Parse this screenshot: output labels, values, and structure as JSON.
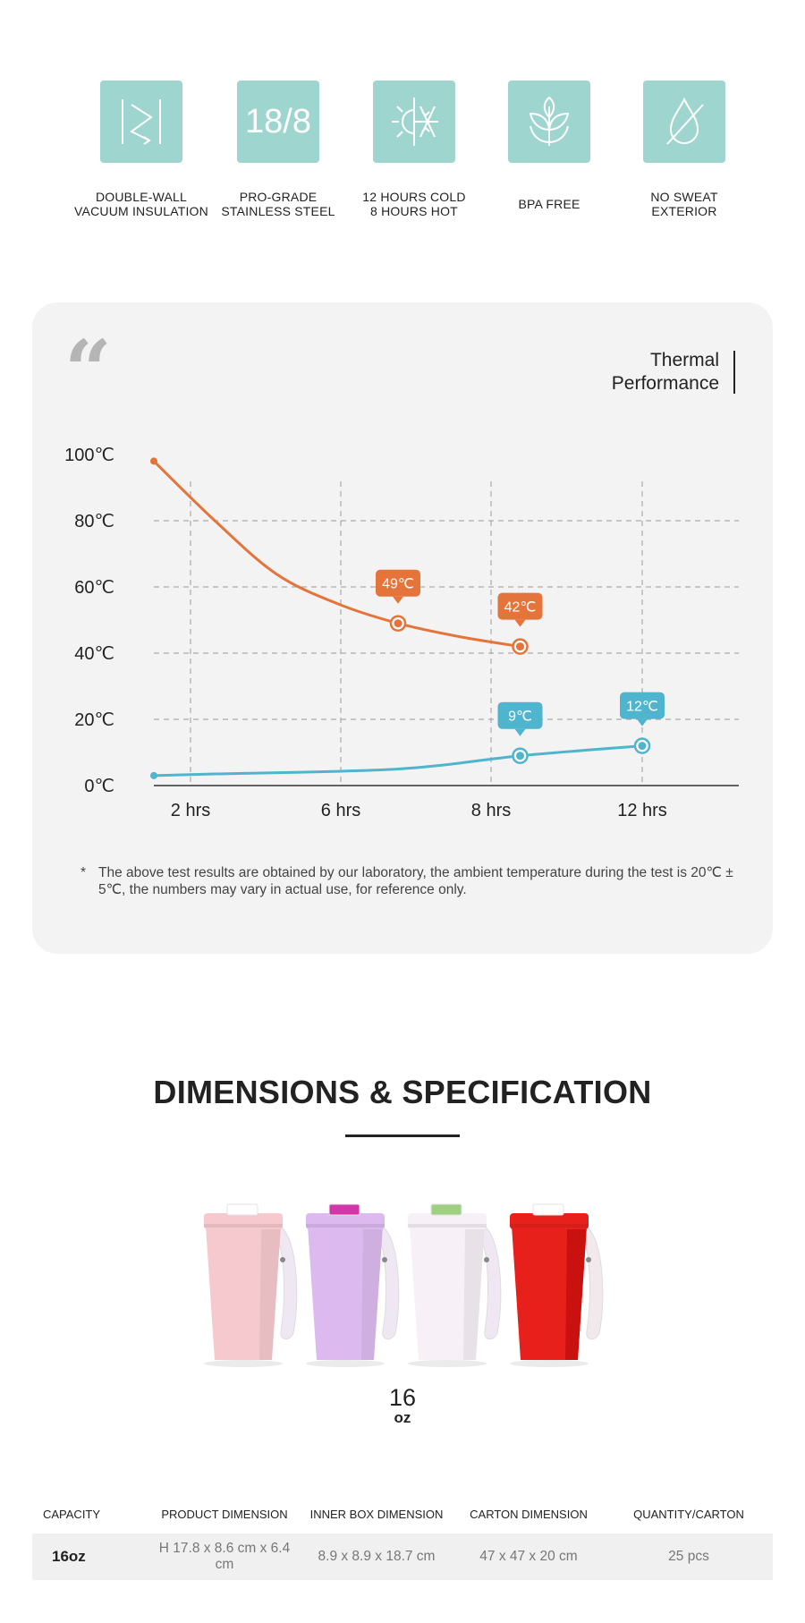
{
  "features": [
    {
      "icon": "vacuum-insulation-icon",
      "lines": [
        "DOUBLE-WALL",
        "VACUUM INSULATION"
      ]
    },
    {
      "icon": "steel-18-8-icon",
      "icon_text": "18/8",
      "lines": [
        "PRO-GRADE",
        "STAINLESS STEEL"
      ]
    },
    {
      "icon": "sun-snowflake-icon",
      "lines": [
        "12 HOURS COLD",
        "8 HOURS HOT"
      ]
    },
    {
      "icon": "leaf-icon",
      "lines": [
        "BPA FREE"
      ]
    },
    {
      "icon": "no-drop-icon",
      "lines": [
        "NO SWEAT",
        "EXTERIOR"
      ]
    }
  ],
  "colors": {
    "feature_bg": "#9fd5cf",
    "hot": "#e5743a",
    "cold": "#4fb4cd",
    "card_bg": "#f4f3f3"
  },
  "thermal": {
    "quote": "“",
    "title_lines": [
      "Thermal",
      "Performance"
    ],
    "footnote_star": "*",
    "footnote": "The above test results are obtained by our laboratory, the ambient temperature during the test is 20℃ ± 5℃, the numbers may vary in actual use, for reference only."
  },
  "chart_data": {
    "type": "line",
    "x_categories": [
      "2 hrs",
      "6 hrs",
      "8 hrs",
      "12 hrs"
    ],
    "y_ticks": [
      "0℃",
      "20℃",
      "40℃",
      "60℃",
      "80℃",
      "100℃"
    ],
    "ylim": [
      0,
      100
    ],
    "grid": true,
    "series": [
      {
        "color": "#e5743a",
        "points": [
          {
            "x": 0,
            "y": 98
          },
          {
            "x": 1,
            "y": 80
          },
          {
            "x": 2,
            "y": 64
          },
          {
            "x": 3,
            "y": 55
          },
          {
            "x": 4,
            "y": 49,
            "label": "49℃"
          },
          {
            "x": 5,
            "y": 45
          },
          {
            "x": 6,
            "y": 42,
            "label": "42℃"
          }
        ]
      },
      {
        "color": "#4fb4cd",
        "points": [
          {
            "x": 0,
            "y": 3
          },
          {
            "x": 1,
            "y": 3.5
          },
          {
            "x": 4,
            "y": 5
          },
          {
            "x": 6,
            "y": 9,
            "label": "9℃"
          },
          {
            "x": 8,
            "y": 12,
            "label": "12℃"
          }
        ]
      }
    ]
  },
  "dimensions": {
    "title": "DIMENSIONS & SPECIFICATION",
    "capacity_number": "16",
    "capacity_unit": "oz",
    "cup_colors": [
      "#f6c9cf",
      "#dcb9ef",
      "#f7f1f7",
      "#e8201c"
    ],
    "lid_accents": [
      "#ffffff",
      "#d236a7",
      "#9fd080",
      "#ffffff"
    ]
  },
  "spec_table": {
    "headers": [
      "CAPACITY",
      "PRODUCT DIMENSION",
      "INNER BOX DIMENSION",
      "CARTON DIMENSION",
      "QUANTITY/CARTON"
    ],
    "rows": [
      [
        "16oz",
        "H 17.8 x 8.6 cm x 6.4 cm",
        "8.9 x 8.9 x 18.7 cm",
        "47 x 47 x 20 cm",
        "25 pcs"
      ]
    ]
  }
}
